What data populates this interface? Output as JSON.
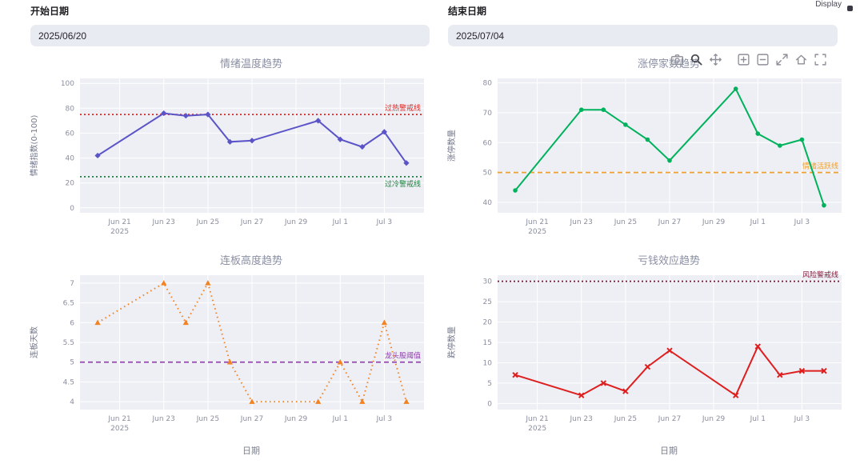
{
  "header": {
    "display_label": "Display"
  },
  "filters": {
    "start": {
      "label": "开始日期",
      "value": "2025/06/20"
    },
    "end": {
      "label": "结束日期",
      "value": "2025/07/04"
    }
  },
  "modebar": {
    "icons": [
      "camera-icon",
      "zoom-icon",
      "pan-icon",
      "zoom-in-icon",
      "zoom-out-icon",
      "autoscale-icon",
      "reset-axes-icon",
      "fullscreen-icon"
    ],
    "active": "zoom-icon"
  },
  "x_axis": {
    "range_days": [
      -0.8,
      14.8
    ],
    "ticks": [
      {
        "day": 1,
        "label": "Jun 21",
        "sublabel": "2025"
      },
      {
        "day": 3,
        "label": "Jun 23"
      },
      {
        "day": 5,
        "label": "Jun 25"
      },
      {
        "day": 7,
        "label": "Jun 27"
      },
      {
        "day": 9,
        "label": "Jun 29"
      },
      {
        "day": 11,
        "label": "Jul 1"
      },
      {
        "day": 13,
        "label": "Jul 3"
      }
    ]
  },
  "chart_data": [
    {
      "type": "line",
      "title": "情绪温度趋势",
      "ylabel": "情绪指数(0-100)",
      "xlabel": "",
      "dates": [
        "2025-06-20",
        "2025-06-23",
        "2025-06-24",
        "2025-06-25",
        "2025-06-26",
        "2025-06-27",
        "2025-06-30",
        "2025-07-01",
        "2025-07-02",
        "2025-07-03",
        "2025-07-04"
      ],
      "x_days": [
        0,
        3,
        4,
        5,
        6,
        7,
        10,
        11,
        12,
        13,
        14
      ],
      "values": [
        42,
        76,
        74,
        75,
        53,
        54,
        70,
        55,
        49,
        61,
        36
      ],
      "ylim": [
        -4,
        104
      ],
      "yticks": [
        0,
        20,
        40,
        60,
        80,
        100
      ],
      "line_color": "#5b54c8",
      "line_dash": "solid",
      "marker": "diamond",
      "ref_lines": [
        {
          "value": 75,
          "label": "过热警戒线",
          "color": "#e02420",
          "dash": "dot",
          "label_pos": "above"
        },
        {
          "value": 25,
          "label": "过冷警戒线",
          "color": "#1a7f3c",
          "dash": "dot",
          "label_pos": "below"
        }
      ]
    },
    {
      "type": "line",
      "title": "涨停家数趋势",
      "ylabel": "涨停数量",
      "xlabel": "",
      "dates": [
        "2025-06-20",
        "2025-06-23",
        "2025-06-24",
        "2025-06-25",
        "2025-06-26",
        "2025-06-27",
        "2025-06-30",
        "2025-07-01",
        "2025-07-02",
        "2025-07-03",
        "2025-07-04"
      ],
      "x_days": [
        0,
        3,
        4,
        5,
        6,
        7,
        10,
        11,
        12,
        13,
        14
      ],
      "values": [
        44,
        71,
        71,
        66,
        61,
        54,
        78,
        63,
        59,
        61,
        39
      ],
      "ylim": [
        36.5,
        81.5
      ],
      "yticks": [
        40,
        50,
        60,
        70,
        80
      ],
      "line_color": "#00b25c",
      "line_dash": "solid",
      "marker": "circle",
      "ref_lines": [
        {
          "value": 50,
          "label": "情绪活跃线",
          "color": "#f0a030",
          "dash": "dash",
          "label_pos": "above"
        }
      ]
    },
    {
      "type": "line",
      "title": "连板高度趋势",
      "ylabel": "连板天数",
      "xlabel": "日期",
      "dates": [
        "2025-06-20",
        "2025-06-23",
        "2025-06-24",
        "2025-06-25",
        "2025-06-26",
        "2025-06-27",
        "2025-06-30",
        "2025-07-01",
        "2025-07-02",
        "2025-07-03",
        "2025-07-04"
      ],
      "x_days": [
        0,
        3,
        4,
        5,
        6,
        7,
        10,
        11,
        12,
        13,
        14
      ],
      "values": [
        6,
        7,
        6,
        7,
        5,
        4,
        4,
        5,
        4,
        6,
        4
      ],
      "ylim": [
        3.8,
        7.2
      ],
      "yticks": [
        4,
        4.5,
        5,
        5.5,
        6,
        6.5,
        7
      ],
      "line_color": "#f28222",
      "line_dash": "dot",
      "marker": "triangle-up",
      "ref_lines": [
        {
          "value": 5,
          "label": "龙头股阈值",
          "color": "#8e3baa",
          "dash": "dash",
          "label_pos": "above"
        }
      ]
    },
    {
      "type": "line",
      "title": "亏钱效应趋势",
      "ylabel": "跌停数量",
      "xlabel": "日期",
      "dates": [
        "2025-06-20",
        "2025-06-23",
        "2025-06-24",
        "2025-06-25",
        "2025-06-26",
        "2025-06-27",
        "2025-06-30",
        "2025-07-01",
        "2025-07-02",
        "2025-07-03",
        "2025-07-04"
      ],
      "x_days": [
        0,
        3,
        4,
        5,
        6,
        7,
        10,
        11,
        12,
        13,
        14
      ],
      "values": [
        7,
        2,
        5,
        3,
        9,
        13,
        2,
        14,
        7,
        8,
        8
      ],
      "ylim": [
        -1.5,
        31.5
      ],
      "yticks": [
        0,
        5,
        10,
        15,
        20,
        25,
        30
      ],
      "line_color": "#de1f1f",
      "line_dash": "solid",
      "marker": "x",
      "ref_lines": [
        {
          "value": 30,
          "label": "风险警戒线",
          "color": "#7a1535",
          "dash": "dot",
          "label_pos": "above"
        }
      ]
    }
  ]
}
